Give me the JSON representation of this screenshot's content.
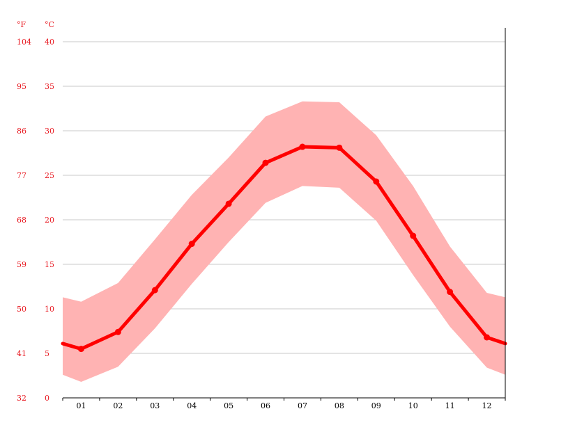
{
  "chart_data": {
    "type": "line",
    "title": "",
    "xlabel": "",
    "ylabel": "",
    "units": {
      "fahrenheit": "°F",
      "celsius": "°C"
    },
    "categories": [
      "01",
      "02",
      "03",
      "04",
      "05",
      "06",
      "07",
      "08",
      "09",
      "10",
      "11",
      "12"
    ],
    "ylim_celsius": [
      0,
      40
    ],
    "yticks_celsius": [
      "0",
      "5",
      "10",
      "15",
      "20",
      "25",
      "30",
      "35",
      "40"
    ],
    "yticks_fahrenheit": [
      "32",
      "41",
      "50",
      "59",
      "68",
      "77",
      "86",
      "95",
      "104"
    ],
    "grid": true,
    "series": [
      {
        "values": [
          5.5,
          7.4,
          12.1,
          17.3,
          21.8,
          26.4,
          28.2,
          28.1,
          24.3,
          18.2,
          11.9,
          6.8
        ],
        "color": "#ff0000"
      }
    ],
    "band": {
      "max": [
        10.8,
        12.9,
        17.8,
        22.8,
        27.0,
        31.6,
        33.3,
        33.2,
        29.5,
        23.8,
        17.0,
        11.8
      ],
      "min": [
        1.8,
        3.5,
        7.8,
        12.8,
        17.5,
        21.9,
        23.8,
        23.6,
        19.9,
        13.8,
        8.0,
        3.4
      ],
      "color": "#ffb3b3"
    },
    "edge_values": {
      "left": 6.1,
      "right": 6.1,
      "band_left_max": 11.3,
      "band_left_min": 2.6,
      "band_right_max": 11.3,
      "band_right_min": 2.6
    }
  }
}
